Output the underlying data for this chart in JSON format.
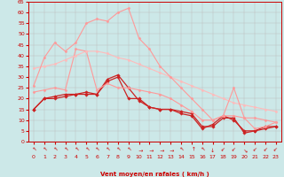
{
  "xlabel": "Vent moyen/en rafales ( km/h )",
  "bg_color": "#cce8e8",
  "grid_color": "#bbbbbb",
  "xlim": [
    -0.5,
    23.5
  ],
  "ylim": [
    0,
    65
  ],
  "yticks": [
    0,
    5,
    10,
    15,
    20,
    25,
    30,
    35,
    40,
    45,
    50,
    55,
    60,
    65
  ],
  "xticks": [
    0,
    1,
    2,
    3,
    4,
    5,
    6,
    7,
    8,
    9,
    10,
    11,
    12,
    13,
    14,
    15,
    16,
    17,
    18,
    19,
    20,
    21,
    22,
    23
  ],
  "series": [
    {
      "x": [
        0,
        1,
        2,
        3,
        4,
        5,
        6,
        7,
        8,
        9,
        10,
        11,
        12,
        13,
        14,
        15,
        16,
        17,
        18,
        19,
        20,
        21,
        22,
        23
      ],
      "y": [
        15,
        20,
        20,
        21,
        22,
        22,
        22,
        28,
        30,
        20,
        20,
        16,
        15,
        15,
        14,
        13,
        7,
        7,
        11,
        11,
        4,
        5,
        6,
        7
      ],
      "color": "#cc2222",
      "lw": 0.9,
      "marker": "D",
      "ms": 1.8
    },
    {
      "x": [
        0,
        1,
        2,
        3,
        4,
        5,
        6,
        7,
        8,
        9,
        10,
        11,
        12,
        13,
        14,
        15,
        16,
        17,
        18,
        19,
        20,
        21,
        22,
        23
      ],
      "y": [
        15,
        20,
        21,
        22,
        22,
        23,
        22,
        29,
        31,
        25,
        19,
        16,
        15,
        15,
        13,
        12,
        6,
        8,
        12,
        10,
        5,
        5,
        7,
        7
      ],
      "color": "#cc2222",
      "lw": 0.9,
      "marker": "D",
      "ms": 1.8
    },
    {
      "x": [
        0,
        1,
        2,
        3,
        4,
        5,
        6,
        7,
        8,
        9,
        10,
        11,
        12,
        13,
        14,
        15,
        16,
        17,
        18,
        19,
        20,
        21,
        22,
        23
      ],
      "y": [
        23,
        24,
        25,
        24,
        43,
        42,
        24,
        27,
        25,
        25,
        24,
        23,
        22,
        20,
        17,
        14,
        10,
        10,
        12,
        12,
        11,
        11,
        10,
        9
      ],
      "color": "#ff9999",
      "lw": 0.8,
      "marker": "D",
      "ms": 1.5
    },
    {
      "x": [
        0,
        1,
        2,
        3,
        4,
        5,
        6,
        7,
        8,
        9,
        10,
        11,
        12,
        13,
        14,
        15,
        16,
        17,
        18,
        19,
        20,
        21,
        22,
        23
      ],
      "y": [
        34,
        35,
        36,
        38,
        40,
        42,
        42,
        41,
        39,
        38,
        36,
        34,
        32,
        30,
        28,
        26,
        24,
        22,
        20,
        18,
        17,
        16,
        15,
        14
      ],
      "color": "#ffbbbb",
      "lw": 0.8,
      "marker": "D",
      "ms": 1.5
    },
    {
      "x": [
        0,
        1,
        2,
        3,
        4,
        5,
        6,
        7,
        8,
        9,
        10,
        11,
        12,
        13,
        14,
        15,
        16,
        17,
        18,
        19,
        20,
        21,
        22,
        23
      ],
      "y": [
        26,
        39,
        46,
        42,
        46,
        55,
        57,
        56,
        60,
        62,
        48,
        43,
        35,
        30,
        25,
        20,
        15,
        10,
        12,
        25,
        11,
        6,
        7,
        9
      ],
      "color": "#ff9999",
      "lw": 0.8,
      "marker": "D",
      "ms": 1.5
    }
  ]
}
